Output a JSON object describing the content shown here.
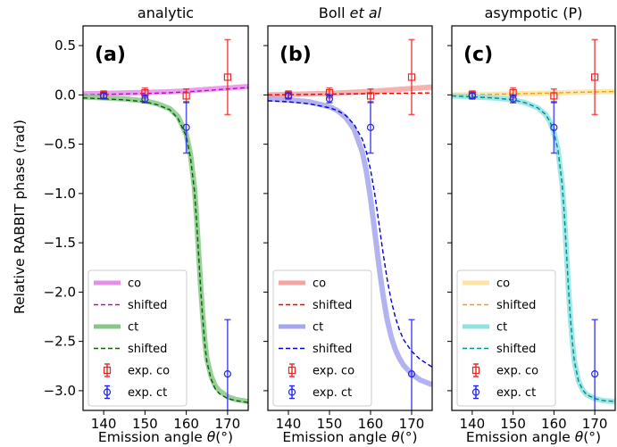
{
  "figure": {
    "ylabel_main": "Relative RABBIT phase (rad)",
    "xlabel_prefix": "Emission angle ",
    "xlabel_symbol": "θ",
    "xlabel_unit": "(°)"
  },
  "chart_data": [
    {
      "type": "line",
      "title": "analytic",
      "title_parts": [
        {
          "text": "analytic",
          "italic": false
        }
      ],
      "panel_label": "(a)",
      "xlabel": "Emission angle θ(°)",
      "ylabel": "Relative RABBIT phase (rad)",
      "xlim": [
        135,
        175
      ],
      "ylim": [
        -3.2,
        0.7
      ],
      "xticks": [
        140,
        150,
        160,
        170
      ],
      "yticks": [
        0.5,
        0.0,
        -0.5,
        -1.0,
        -1.5,
        -2.0,
        -2.5,
        -3.0
      ],
      "ytick_labels": [
        "0.5",
        "0.0",
        "−0.5",
        "−1.0",
        "−1.5",
        "−2.0",
        "−2.5",
        "−3.0"
      ],
      "legend_position": "lower-left",
      "colors": {
        "co": "#e58fe9",
        "shifted_co": "#cc00cc",
        "ct": "#88c788",
        "shifted_ct": "#006400"
      },
      "series": [
        {
          "name": "co",
          "style": "thick",
          "color": "#e58fe9",
          "x": [
            135,
            140,
            145,
            150,
            155,
            160,
            165,
            170,
            175
          ],
          "y": [
            0.01,
            0.015,
            0.02,
            0.025,
            0.03,
            0.04,
            0.055,
            0.07,
            0.085
          ]
        },
        {
          "name": "shifted",
          "style": "dashed",
          "color": "#cc00cc",
          "x": [
            135,
            140,
            145,
            150,
            155,
            160,
            165,
            170,
            175
          ],
          "y": [
            0.0,
            0.005,
            0.01,
            0.015,
            0.02,
            0.03,
            0.045,
            0.06,
            0.075
          ]
        },
        {
          "name": "ct",
          "style": "thick",
          "color": "#88c788",
          "x": [
            135,
            140,
            145,
            150,
            153,
            156,
            158,
            160,
            161,
            162,
            162.5,
            163,
            163.5,
            164,
            164.5,
            165,
            166,
            167,
            168,
            170,
            172,
            175
          ],
          "y": [
            -0.02,
            -0.03,
            -0.04,
            -0.06,
            -0.09,
            -0.14,
            -0.22,
            -0.4,
            -0.6,
            -0.95,
            -1.25,
            -1.6,
            -1.95,
            -2.25,
            -2.5,
            -2.68,
            -2.85,
            -2.95,
            -3.0,
            -3.06,
            -3.09,
            -3.11
          ]
        },
        {
          "name": "shifted",
          "style": "dashed",
          "color": "#006400",
          "x": [
            135,
            140,
            145,
            150,
            153,
            156,
            158,
            160,
            161,
            162,
            162.5,
            163,
            163.5,
            164,
            164.5,
            165,
            166,
            167,
            168,
            170,
            172,
            175
          ],
          "y": [
            -0.03,
            -0.04,
            -0.05,
            -0.07,
            -0.1,
            -0.15,
            -0.24,
            -0.42,
            -0.63,
            -0.98,
            -1.28,
            -1.63,
            -1.98,
            -2.28,
            -2.53,
            -2.71,
            -2.88,
            -2.98,
            -3.03,
            -3.08,
            -3.1,
            -3.12
          ]
        },
        {
          "name": "exp. co",
          "style": "marker-square",
          "color": "#ee2222",
          "x": [
            140,
            150,
            160,
            170
          ],
          "y": [
            0.0,
            0.02,
            -0.01,
            0.18
          ],
          "err": [
            0.04,
            0.05,
            0.07,
            0.38
          ]
        },
        {
          "name": "exp. ct",
          "style": "marker-circle",
          "color": "#2222ee",
          "x": [
            140,
            150,
            160,
            170
          ],
          "y": [
            -0.01,
            -0.04,
            -0.33,
            -2.83
          ],
          "err": [
            0.03,
            0.04,
            0.26,
            0.55
          ]
        }
      ]
    },
    {
      "type": "line",
      "title": "Boll et al",
      "title_parts": [
        {
          "text": "Boll ",
          "italic": false
        },
        {
          "text": "et al",
          "italic": true
        }
      ],
      "panel_label": "(b)",
      "xlabel": "Emission angle θ(°)",
      "ylabel": "",
      "xlim": [
        135,
        175
      ],
      "ylim": [
        -3.2,
        0.7
      ],
      "xticks": [
        140,
        150,
        160,
        170
      ],
      "yticks": [
        0.5,
        0.0,
        -0.5,
        -1.0,
        -1.5,
        -2.0,
        -2.5,
        -3.0
      ],
      "ytick_labels": [],
      "legend_position": "lower-left",
      "colors": {
        "co": "#f5a3a3",
        "shifted_co": "#ee0000",
        "ct": "#a6a6f0",
        "shifted_ct": "#0000cc"
      },
      "series": [
        {
          "name": "co",
          "style": "thick",
          "color": "#f5a3a3",
          "x": [
            135,
            140,
            145,
            150,
            155,
            160,
            165,
            170,
            175
          ],
          "y": [
            0.0,
            0.005,
            0.01,
            0.015,
            0.025,
            0.035,
            0.05,
            0.065,
            0.08
          ]
        },
        {
          "name": "shifted",
          "style": "dashed",
          "color": "#ee0000",
          "x": [
            135,
            140,
            145,
            150,
            155,
            160,
            165,
            170,
            175
          ],
          "y": [
            0.0,
            0.003,
            0.005,
            0.008,
            0.01,
            0.013,
            0.015,
            0.018,
            0.02
          ]
        },
        {
          "name": "ct",
          "style": "thick",
          "color": "#a6a6f0",
          "x": [
            135,
            140,
            145,
            150,
            152,
            154,
            156,
            158,
            159,
            160,
            161,
            162,
            163,
            164,
            165,
            166,
            167,
            168,
            170,
            172,
            175
          ],
          "y": [
            -0.04,
            -0.05,
            -0.07,
            -0.12,
            -0.16,
            -0.23,
            -0.35,
            -0.58,
            -0.78,
            -1.05,
            -1.38,
            -1.72,
            -2.02,
            -2.27,
            -2.45,
            -2.58,
            -2.67,
            -2.74,
            -2.83,
            -2.89,
            -2.94
          ]
        },
        {
          "name": "shifted",
          "style": "dashed",
          "color": "#0000cc",
          "x": [
            135,
            140,
            145,
            150,
            152,
            154,
            156,
            158,
            159,
            160,
            161,
            162,
            163,
            164,
            165,
            166,
            167,
            168,
            170,
            172,
            175
          ],
          "y": [
            -0.06,
            -0.07,
            -0.09,
            -0.13,
            -0.16,
            -0.21,
            -0.3,
            -0.45,
            -0.58,
            -0.76,
            -1.0,
            -1.29,
            -1.59,
            -1.86,
            -2.08,
            -2.25,
            -2.38,
            -2.48,
            -2.6,
            -2.68,
            -2.76
          ]
        },
        {
          "name": "exp. co",
          "style": "marker-square",
          "color": "#ee2222",
          "x": [
            140,
            150,
            160,
            170
          ],
          "y": [
            0.0,
            0.02,
            -0.01,
            0.18
          ],
          "err": [
            0.04,
            0.05,
            0.07,
            0.38
          ]
        },
        {
          "name": "exp. ct",
          "style": "marker-circle",
          "color": "#2222ee",
          "x": [
            140,
            150,
            160,
            170
          ],
          "y": [
            -0.01,
            -0.04,
            -0.33,
            -2.83
          ],
          "err": [
            0.03,
            0.04,
            0.26,
            0.55
          ]
        }
      ]
    },
    {
      "type": "line",
      "title": "asympotic (P)",
      "title_parts": [
        {
          "text": "asympotic (P)",
          "italic": false
        }
      ],
      "panel_label": "(c)",
      "xlabel": "Emission angle θ(°)",
      "ylabel": "",
      "xlim": [
        135,
        175
      ],
      "ylim": [
        -3.2,
        0.7
      ],
      "xticks": [
        140,
        150,
        160,
        170
      ],
      "yticks": [
        0.5,
        0.0,
        -0.5,
        -1.0,
        -1.5,
        -2.0,
        -2.5,
        -3.0
      ],
      "ytick_labels": [],
      "legend_position": "lower-left",
      "colors": {
        "co": "#fde3a6",
        "shifted_co": "#e8a317",
        "ct": "#8fe3e3",
        "shifted_ct": "#008b8b"
      },
      "series": [
        {
          "name": "co",
          "style": "thick",
          "color": "#fde3a6",
          "x": [
            135,
            140,
            145,
            150,
            155,
            160,
            165,
            170,
            175
          ],
          "y": [
            0.0,
            0.003,
            0.006,
            0.01,
            0.015,
            0.02,
            0.025,
            0.03,
            0.035
          ]
        },
        {
          "name": "shifted",
          "style": "dashed",
          "color": "#e8a317",
          "x": [
            135,
            140,
            145,
            150,
            155,
            160,
            165,
            170,
            175
          ],
          "y": [
            0.0,
            0.003,
            0.006,
            0.01,
            0.015,
            0.02,
            0.025,
            0.03,
            0.035
          ]
        },
        {
          "name": "ct",
          "style": "thick",
          "color": "#8fe3e3",
          "x": [
            135,
            140,
            145,
            150,
            153,
            156,
            158,
            159,
            160,
            161,
            162,
            162.5,
            163,
            163.5,
            164,
            164.5,
            165,
            166,
            167,
            168,
            170,
            172,
            175
          ],
          "y": [
            -0.01,
            -0.02,
            -0.03,
            -0.05,
            -0.08,
            -0.13,
            -0.2,
            -0.27,
            -0.38,
            -0.56,
            -0.9,
            -1.18,
            -1.55,
            -1.92,
            -2.25,
            -2.5,
            -2.7,
            -2.9,
            -2.99,
            -3.04,
            -3.08,
            -3.1,
            -3.11
          ]
        },
        {
          "name": "shifted",
          "style": "dashed",
          "color": "#008b8b",
          "x": [
            135,
            140,
            145,
            150,
            153,
            156,
            158,
            159,
            160,
            161,
            162,
            162.5,
            163,
            163.5,
            164,
            164.5,
            165,
            166,
            167,
            168,
            170,
            172,
            175
          ],
          "y": [
            -0.01,
            -0.02,
            -0.03,
            -0.05,
            -0.08,
            -0.13,
            -0.2,
            -0.27,
            -0.38,
            -0.56,
            -0.9,
            -1.18,
            -1.55,
            -1.92,
            -2.25,
            -2.5,
            -2.7,
            -2.9,
            -2.99,
            -3.04,
            -3.08,
            -3.1,
            -3.11
          ]
        },
        {
          "name": "exp. co",
          "style": "marker-square",
          "color": "#ee2222",
          "x": [
            140,
            150,
            160,
            170
          ],
          "y": [
            0.0,
            0.02,
            -0.01,
            0.18
          ],
          "err": [
            0.04,
            0.05,
            0.07,
            0.38
          ]
        },
        {
          "name": "exp. ct",
          "style": "marker-circle",
          "color": "#2222ee",
          "x": [
            140,
            150,
            160,
            170
          ],
          "y": [
            -0.01,
            -0.04,
            -0.33,
            -2.83
          ],
          "err": [
            0.03,
            0.04,
            0.26,
            0.55
          ]
        }
      ]
    }
  ]
}
